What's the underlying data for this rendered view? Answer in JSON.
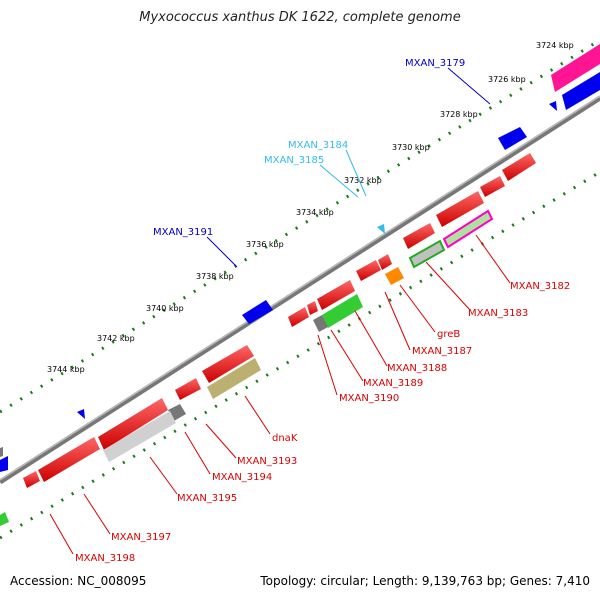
{
  "title": "Myxococcus xanthus DK 1622, complete genome",
  "footer": {
    "accession": "Accession: NC_008095",
    "stats": "Topology: circular; Length: 9,139,763 bp; Genes: 7,410"
  },
  "ticks": [
    "3724 kbp",
    "3726 kbp",
    "3728 kbp",
    "3730 kbp",
    "3732 kbp",
    "3734 kbp",
    "3736 kbp",
    "3738 kbp",
    "3740 kbp",
    "3742 kbp",
    "3744 kbp"
  ],
  "top_labels": [
    {
      "text": "MXAN_3179",
      "color": "#0000cc"
    },
    {
      "text": "MXAN_3184",
      "color": "#33bbee"
    },
    {
      "text": "MXAN_3185",
      "color": "#33bbee"
    },
    {
      "text": "MXAN_3191",
      "color": "#0000cc"
    }
  ],
  "bottom_labels": [
    "MXAN_3182",
    "MXAN_3183",
    "greB",
    "MXAN_3187",
    "MXAN_3188",
    "MXAN_3189",
    "MXAN_3190",
    "dnaK",
    "MXAN_3193",
    "MXAN_3194",
    "MXAN_3195",
    "MXAN_3197",
    "MXAN_3198"
  ],
  "colors": {
    "forward_gene": "#0000ee",
    "reverse_gene": "#ee0000",
    "rna": "#33bbee",
    "label_red": "#dd0000",
    "backbone": "#888888",
    "tick_dots": "#1a7a1a"
  }
}
